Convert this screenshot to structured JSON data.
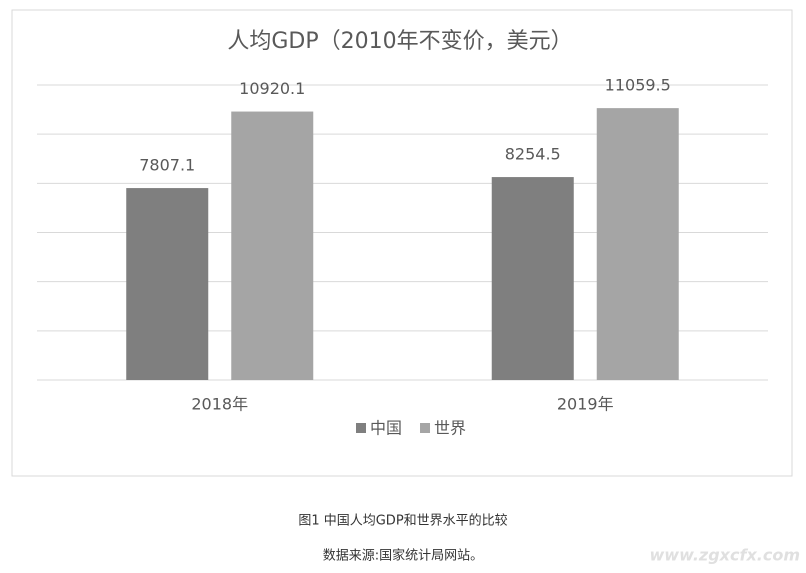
{
  "chart_data": {
    "type": "bar",
    "title": "人均GDP（2010年不变价，美元）",
    "categories": [
      "2018年",
      "2019年"
    ],
    "series": [
      {
        "name": "中国",
        "color": "#7f7f7f",
        "values": [
          7807.1,
          8254.5
        ]
      },
      {
        "name": "世界",
        "color": "#a5a5a5",
        "values": [
          10920.1,
          11059.5
        ]
      }
    ],
    "ylim": [
      0,
      12000
    ],
    "yticks": [
      0,
      2000,
      4000,
      6000,
      8000,
      10000,
      12000
    ],
    "grid": true,
    "legend": "bottom"
  },
  "caption": "图1 中国人均GDP和世界水平的比较",
  "source": "数据来源:国家统计局网站。",
  "watermark": "www.zgxcfx.com"
}
